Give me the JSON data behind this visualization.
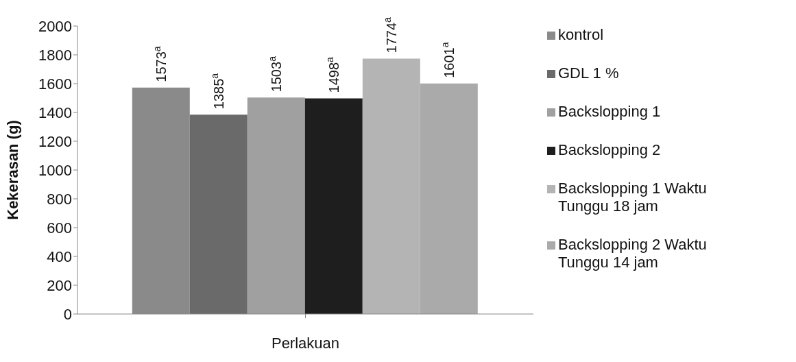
{
  "chart_data": {
    "type": "bar",
    "xlabel": "Perlakuan",
    "ylabel": "Kekerasan (g)",
    "categories": [
      null
    ],
    "ylim": [
      0,
      2000
    ],
    "yticks": [
      0,
      200,
      400,
      600,
      800,
      1000,
      1200,
      1400,
      1600,
      1800,
      2000
    ],
    "grid": false,
    "legend": "right",
    "series": [
      {
        "name": "kontrol",
        "color": "#8a8a8a",
        "values": [
          1573
        ],
        "value_labels": [
          "1573$^{a}$"
        ]
      },
      {
        "name": "GDL 1 %",
        "color": "#6a6a6a",
        "values": [
          1385
        ],
        "value_labels": [
          "1385$^{a}$"
        ]
      },
      {
        "name": "Backslopping 1",
        "color": "#a0a0a0",
        "values": [
          1503
        ],
        "value_labels": [
          "1503$^{a}$"
        ]
      },
      {
        "name": "Backslopping 2",
        "color": "#1e1e1e",
        "values": [
          1498
        ],
        "value_labels": [
          "1498$^{a}$"
        ]
      },
      {
        "name": "Backslopping 1 Waktu Tunggu 18 jam",
        "color": "#b4b4b4",
        "values": [
          1774
        ],
        "value_labels": [
          "1774$^{a}$"
        ]
      },
      {
        "name": "Backslopping 2 Waktu Tunggu 14 jam",
        "color": "#aaaaaa",
        "values": [
          1601
        ],
        "value_labels": [
          "1601$^{a}$"
        ]
      }
    ]
  }
}
